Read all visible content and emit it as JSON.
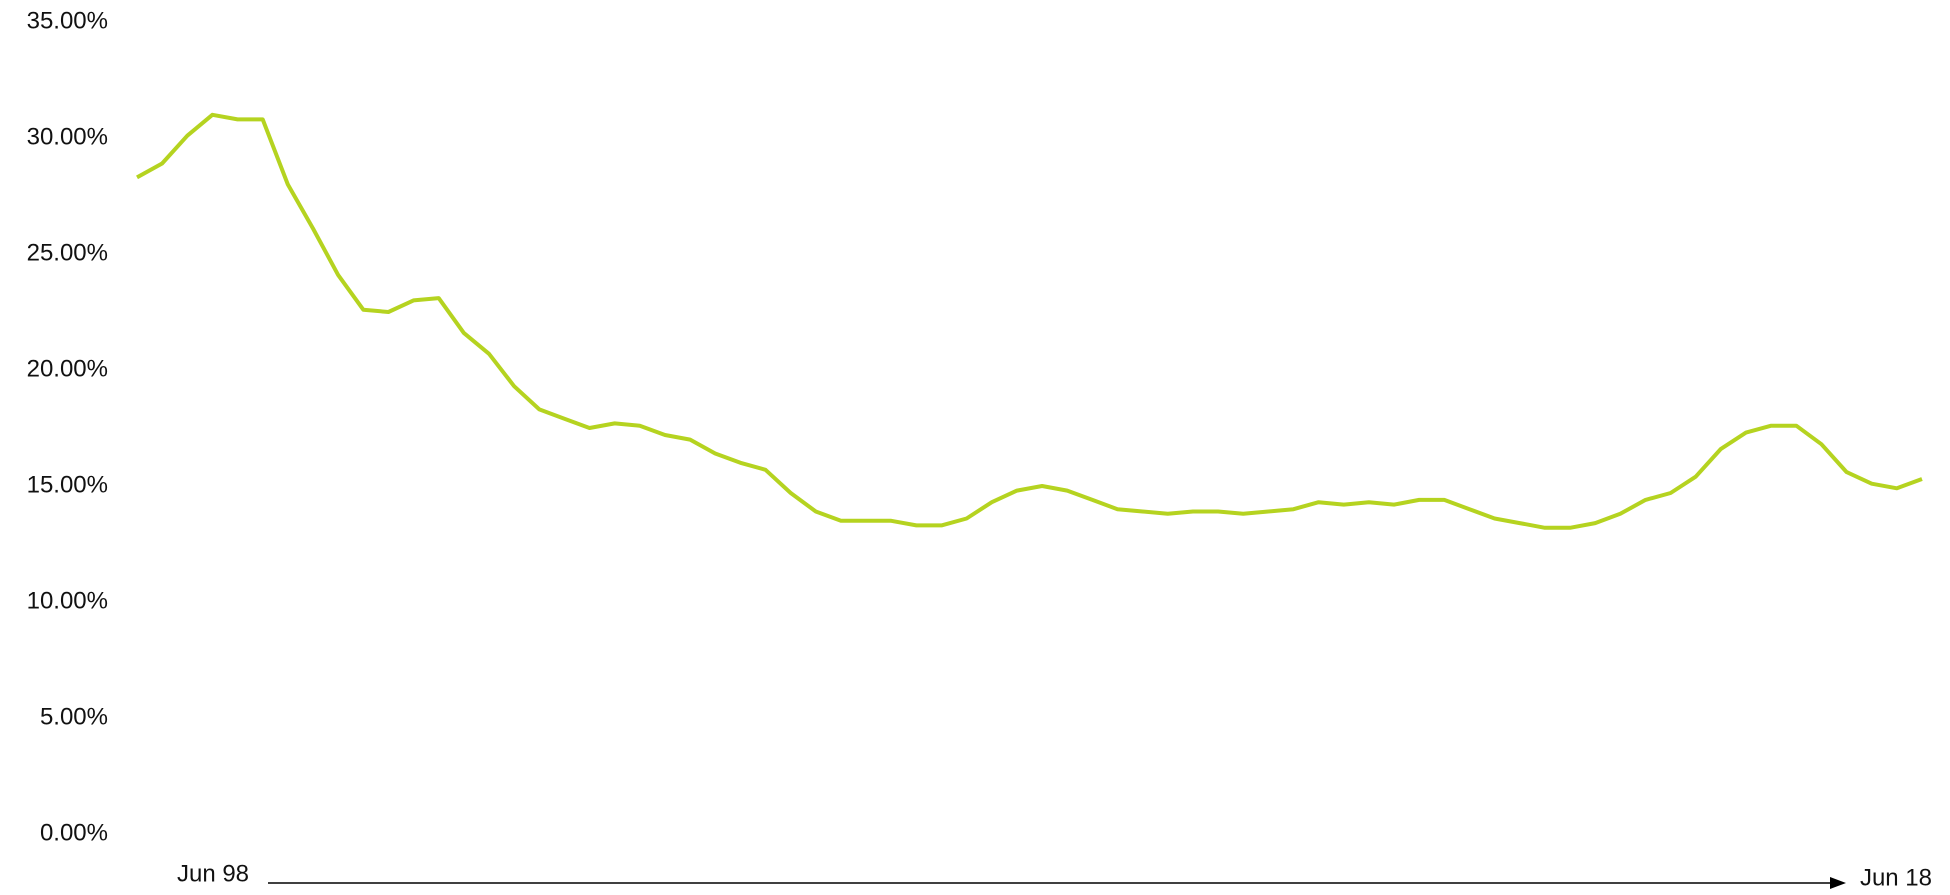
{
  "chart_data": {
    "type": "line",
    "x_labels": [
      "Jun 98",
      "Jun 18"
    ],
    "series": [
      {
        "color": "#b5d320",
        "values": [
          28.3,
          28.9,
          30.1,
          31.0,
          30.8,
          30.8,
          28.0,
          26.1,
          24.1,
          22.6,
          22.5,
          23.0,
          23.1,
          21.6,
          20.7,
          19.3,
          18.3,
          17.9,
          17.5,
          17.7,
          17.6,
          17.2,
          17.0,
          16.4,
          16.0,
          15.7,
          14.7,
          13.9,
          13.5,
          13.5,
          13.5,
          13.3,
          13.3,
          13.6,
          14.3,
          14.8,
          15.0,
          14.8,
          14.4,
          14.0,
          13.9,
          13.8,
          13.9,
          13.9,
          13.8,
          13.9,
          14.0,
          14.3,
          14.2,
          14.3,
          14.2,
          14.4,
          14.4,
          14.0,
          13.6,
          13.4,
          13.2,
          13.2,
          13.4,
          13.8,
          14.4,
          14.7,
          15.4,
          16.6,
          17.3,
          17.6,
          17.6,
          16.8,
          15.6,
          15.1,
          14.9,
          15.3
        ]
      }
    ],
    "ylim": [
      0,
      35
    ],
    "yticks": [
      {
        "value": 0,
        "label": "0.00%"
      },
      {
        "value": 5,
        "label": "5.00%"
      },
      {
        "value": 10,
        "label": "10.00%"
      },
      {
        "value": 15,
        "label": "15.00%"
      },
      {
        "value": 20,
        "label": "20.00%"
      },
      {
        "value": 25,
        "label": "25.00%"
      },
      {
        "value": 30,
        "label": "30.00%"
      },
      {
        "value": 35,
        "label": "35.00%"
      }
    ],
    "grid": false
  }
}
